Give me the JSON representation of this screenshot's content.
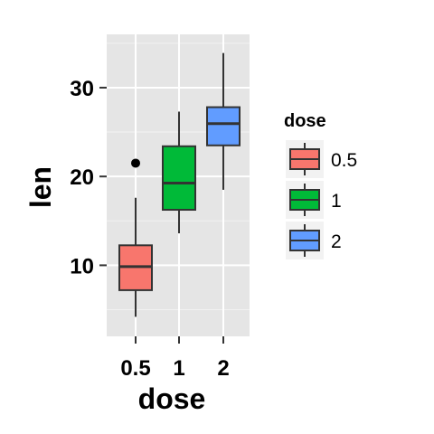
{
  "chart_data": {
    "type": "box",
    "title": "",
    "xlabel": "dose",
    "ylabel": "len",
    "categories": [
      "0.5",
      "1",
      "2"
    ],
    "ylim": [
      2.0,
      36.0
    ],
    "yticks": [
      10,
      20,
      30
    ],
    "ytick_labels": [
      "10",
      "20",
      "30"
    ],
    "grid": true,
    "legend": {
      "title": "dose",
      "position": "right",
      "entries": [
        "0.5",
        "1",
        "2"
      ]
    },
    "colors": [
      "#F8766D",
      "#00BA38",
      "#619CFF"
    ],
    "panel_background": "#E5E5E5",
    "grid_color": "#FFFFFF",
    "boxes": [
      {
        "category": "0.5",
        "min": 4.2,
        "q1": 7.2,
        "median": 9.85,
        "q3": 12.25,
        "max": 17.6,
        "outliers": [
          21.5
        ]
      },
      {
        "category": "1",
        "min": 13.6,
        "q1": 16.25,
        "median": 19.25,
        "q3": 23.4,
        "max": 27.3,
        "outliers": []
      },
      {
        "category": "2",
        "min": 18.5,
        "q1": 23.5,
        "median": 25.95,
        "q3": 27.8,
        "max": 33.9,
        "outliers": []
      }
    ]
  }
}
